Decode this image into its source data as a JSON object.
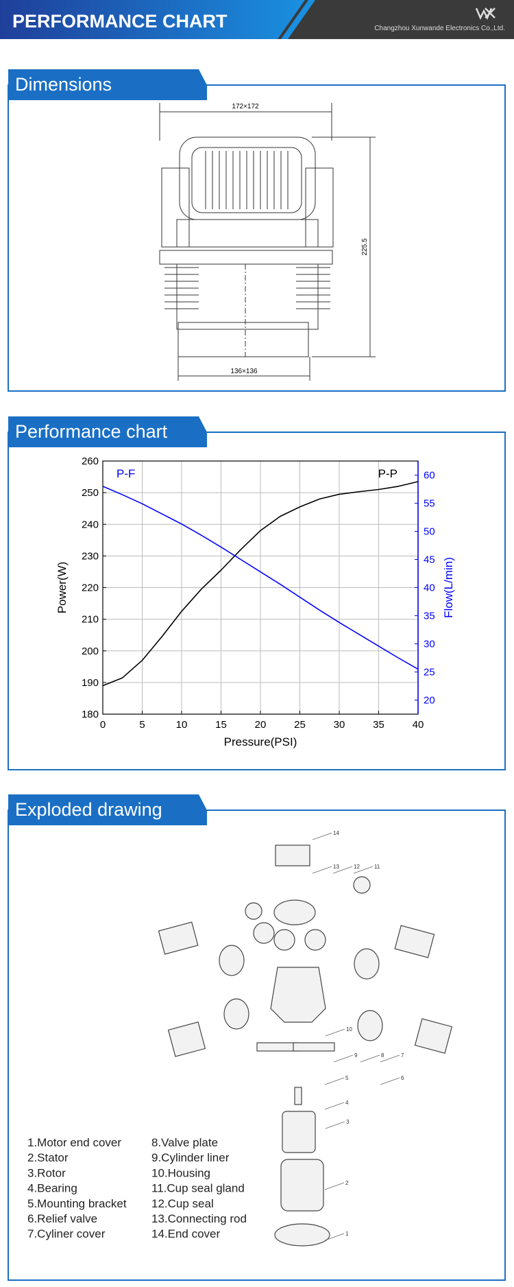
{
  "header": {
    "title": "PERFORMANCE CHART",
    "company": "Changzhou Xunwande Electronics Co.,Ltd."
  },
  "sections": [
    {
      "title": "Dimensions"
    },
    {
      "title": "Performance chart"
    },
    {
      "title": "Exploded drawing"
    }
  ],
  "dimensions": {
    "top": "172×172",
    "height": "225.5",
    "bottom": "136×136"
  },
  "chart_data": {
    "type": "line",
    "xlabel": "Pressure(PSI)",
    "ylabel": "Power(W)",
    "y2label": "Flow(L/min)",
    "x": [
      0,
      2.5,
      5,
      7.5,
      10,
      12.5,
      15,
      17.5,
      20,
      22.5,
      25,
      27.5,
      30,
      32.5,
      35,
      37.5,
      40
    ],
    "series": [
      {
        "name": "P-P",
        "color": "#000000",
        "values": [
          189,
          191.5,
          197,
          204.5,
          212.5,
          219.5,
          225.5,
          232,
          238,
          242.5,
          245.5,
          248,
          249.5,
          250.3,
          251,
          252,
          253.5
        ]
      },
      {
        "name": "P-F",
        "color": "#0000ff",
        "axis": "y2",
        "values": [
          58,
          56.5,
          54.9,
          53.1,
          51.3,
          49.3,
          47.2,
          45,
          42.8,
          40.6,
          38.3,
          36,
          33.8,
          31.7,
          29.6,
          27.5,
          25.5
        ]
      }
    ],
    "xlim": [
      0,
      40
    ],
    "xticks": [
      0,
      5,
      10,
      15,
      20,
      25,
      30,
      35,
      40
    ],
    "ylim": [
      180,
      260
    ],
    "yticks": [
      180,
      190,
      200,
      210,
      220,
      230,
      240,
      250,
      260
    ],
    "y2lim": [
      17.5,
      62.5
    ],
    "y2ticks": [
      20,
      25,
      30,
      35,
      40,
      45,
      50,
      55,
      60
    ],
    "grid": true
  },
  "exploded": {
    "callouts": [
      "1",
      "2",
      "3",
      "4",
      "5",
      "6",
      "7",
      "8",
      "9",
      "10",
      "11",
      "12",
      "13",
      "14"
    ],
    "parts": [
      "1.Motor end cover",
      "2.Stator",
      "3.Rotor",
      "4.Bearing",
      "5.Mounting bracket",
      "6.Relief valve",
      "7.Cyliner cover",
      "8.Valve plate",
      "9.Cylinder liner",
      "10.Housing",
      "11.Cup seal gland",
      "12.Cup seal",
      "13.Connecting rod",
      "14.End cover"
    ]
  }
}
